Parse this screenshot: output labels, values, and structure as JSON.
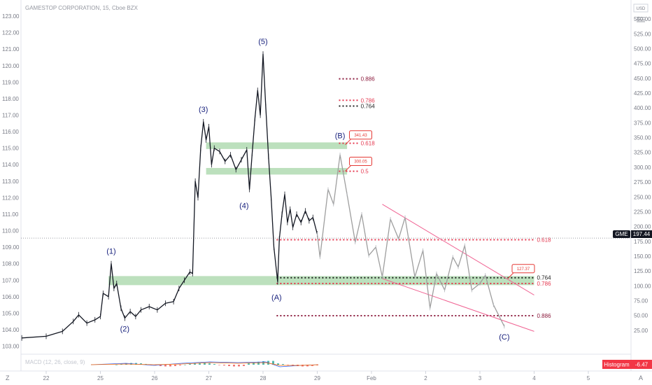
{
  "chart_data": {
    "type": "line",
    "title": "GAMESTOP CORPORATION, 15, Cboe BZX",
    "currency_label": "USD",
    "symbol": "GME",
    "last_price": "197.44",
    "last_price_left_axis": 109.55,
    "left_axis": {
      "ylim": [
        102.6,
        123.3
      ],
      "ticks": [
        {
          "label": "123.00",
          "value": 123
        },
        {
          "label": "122.00",
          "value": 122
        },
        {
          "label": "121.00",
          "value": 121
        },
        {
          "label": "120.00",
          "value": 120
        },
        {
          "label": "119.00",
          "value": 119
        },
        {
          "label": "118.00",
          "value": 118
        },
        {
          "label": "117.00",
          "value": 117
        },
        {
          "label": "116.00",
          "value": 116
        },
        {
          "label": "115.00",
          "value": 115
        },
        {
          "label": "114.00",
          "value": 114
        },
        {
          "label": "113.00",
          "value": 113
        },
        {
          "label": "112.00",
          "value": 112
        },
        {
          "label": "111.00",
          "value": 111
        },
        {
          "label": "110.00",
          "value": 110
        },
        {
          "label": "109.00",
          "value": 109
        },
        {
          "label": "108.00",
          "value": 108
        },
        {
          "label": "107.00",
          "value": 107
        },
        {
          "label": "106.00",
          "value": 106
        },
        {
          "label": "105.00",
          "value": 105
        },
        {
          "label": "104.00",
          "value": 104
        },
        {
          "label": "103.00",
          "value": 103
        }
      ]
    },
    "right_axis": {
      "ylim": [
        0,
        575
      ],
      "ticks": [
        "550.00",
        "525.00",
        "500.00",
        "475.00",
        "450.00",
        "425.00",
        "400.00",
        "375.00",
        "350.00",
        "325.00",
        "300.00",
        "275.00",
        "250.00",
        "225.00",
        "200.00",
        "175.00",
        "150.00",
        "125.00",
        "100.00",
        "75.00",
        "50.00",
        "25.00"
      ],
      "values": [
        550,
        525,
        500,
        475,
        450,
        425,
        400,
        375,
        350,
        325,
        300,
        275,
        250,
        225,
        200,
        175,
        150,
        125,
        100,
        75,
        50,
        25
      ]
    },
    "x_axis": {
      "labels": [
        "22",
        "25",
        "26",
        "27",
        "28",
        "29",
        "Feb",
        "2",
        "3",
        "4",
        "5"
      ],
      "positions": [
        0,
        1,
        2,
        3,
        4,
        5,
        6,
        7,
        8,
        9,
        10
      ]
    },
    "price_series": [
      {
        "x": -0.45,
        "y": 103.5
      },
      {
        "x": 0.0,
        "y": 103.6
      },
      {
        "x": 0.3,
        "y": 103.9
      },
      {
        "x": 0.5,
        "y": 104.5
      },
      {
        "x": 0.6,
        "y": 104.9
      },
      {
        "x": 0.75,
        "y": 104.4
      },
      {
        "x": 0.9,
        "y": 104.6
      },
      {
        "x": 1.0,
        "y": 104.8
      },
      {
        "x": 1.05,
        "y": 106.2
      },
      {
        "x": 1.15,
        "y": 106.0
      },
      {
        "x": 1.2,
        "y": 108.0
      },
      {
        "x": 1.25,
        "y": 106.5
      },
      {
        "x": 1.3,
        "y": 106.8
      },
      {
        "x": 1.38,
        "y": 105.3
      },
      {
        "x": 1.45,
        "y": 104.7
      },
      {
        "x": 1.55,
        "y": 105.1
      },
      {
        "x": 1.65,
        "y": 104.8
      },
      {
        "x": 1.75,
        "y": 105.2
      },
      {
        "x": 1.9,
        "y": 105.4
      },
      {
        "x": 2.05,
        "y": 105.2
      },
      {
        "x": 2.2,
        "y": 105.6
      },
      {
        "x": 2.35,
        "y": 105.7
      },
      {
        "x": 2.45,
        "y": 106.5
      },
      {
        "x": 2.55,
        "y": 107.0
      },
      {
        "x": 2.65,
        "y": 107.5
      },
      {
        "x": 2.7,
        "y": 107.4
      },
      {
        "x": 2.75,
        "y": 113.0
      },
      {
        "x": 2.8,
        "y": 112.0
      },
      {
        "x": 2.85,
        "y": 115.0
      },
      {
        "x": 2.9,
        "y": 116.6
      },
      {
        "x": 2.95,
        "y": 115.5
      },
      {
        "x": 3.0,
        "y": 116.3
      },
      {
        "x": 3.05,
        "y": 114.0
      },
      {
        "x": 3.1,
        "y": 115.0
      },
      {
        "x": 3.2,
        "y": 114.8
      },
      {
        "x": 3.3,
        "y": 114.2
      },
      {
        "x": 3.4,
        "y": 114.6
      },
      {
        "x": 3.5,
        "y": 113.7
      },
      {
        "x": 3.6,
        "y": 114.3
      },
      {
        "x": 3.7,
        "y": 114.9
      },
      {
        "x": 3.75,
        "y": 112.5
      },
      {
        "x": 3.8,
        "y": 114.7
      },
      {
        "x": 3.85,
        "y": 116.8
      },
      {
        "x": 3.9,
        "y": 118.5
      },
      {
        "x": 3.95,
        "y": 117.0
      },
      {
        "x": 4.0,
        "y": 120.7
      },
      {
        "x": 4.05,
        "y": 117.5
      },
      {
        "x": 4.1,
        "y": 114.5
      },
      {
        "x": 4.15,
        "y": 112.0
      },
      {
        "x": 4.2,
        "y": 109.0
      },
      {
        "x": 4.27,
        "y": 106.9
      },
      {
        "x": 4.3,
        "y": 109.5
      },
      {
        "x": 4.35,
        "y": 111.0
      },
      {
        "x": 4.4,
        "y": 112.2
      },
      {
        "x": 4.45,
        "y": 110.5
      },
      {
        "x": 4.5,
        "y": 111.3
      },
      {
        "x": 4.55,
        "y": 110.2
      },
      {
        "x": 4.62,
        "y": 111.0
      },
      {
        "x": 4.7,
        "y": 110.5
      },
      {
        "x": 4.78,
        "y": 111.2
      },
      {
        "x": 4.85,
        "y": 110.6
      },
      {
        "x": 4.92,
        "y": 110.8
      },
      {
        "x": 5.0,
        "y": 109.8
      }
    ],
    "projection_series": [
      {
        "x": 5.0,
        "y": 109.8
      },
      {
        "x": 5.05,
        "y": 108.4
      },
      {
        "x": 5.2,
        "y": 112.5
      },
      {
        "x": 5.3,
        "y": 111.6
      },
      {
        "x": 5.42,
        "y": 114.6
      },
      {
        "x": 5.55,
        "y": 112.2
      },
      {
        "x": 5.7,
        "y": 109.3
      },
      {
        "x": 5.82,
        "y": 111.0
      },
      {
        "x": 5.95,
        "y": 108.5
      },
      {
        "x": 6.08,
        "y": 109.0
      },
      {
        "x": 6.2,
        "y": 107.2
      },
      {
        "x": 6.35,
        "y": 110.7
      },
      {
        "x": 6.5,
        "y": 109.5
      },
      {
        "x": 6.62,
        "y": 110.8
      },
      {
        "x": 6.8,
        "y": 107.2
      },
      {
        "x": 6.95,
        "y": 108.8
      },
      {
        "x": 7.08,
        "y": 105.3
      },
      {
        "x": 7.2,
        "y": 107.4
      },
      {
        "x": 7.35,
        "y": 106.4
      },
      {
        "x": 7.5,
        "y": 108.4
      },
      {
        "x": 7.6,
        "y": 107.8
      },
      {
        "x": 7.72,
        "y": 109.1
      },
      {
        "x": 7.85,
        "y": 106.4
      },
      {
        "x": 8.0,
        "y": 106.8
      },
      {
        "x": 8.1,
        "y": 107.3
      },
      {
        "x": 8.25,
        "y": 105.5
      },
      {
        "x": 8.45,
        "y": 104.2
      }
    ],
    "channel_lines": [
      {
        "x1": 6.2,
        "y1": 111.6,
        "x2": 9.0,
        "y2": 106.1
      },
      {
        "x1": 6.2,
        "y1": 107.1,
        "x2": 9.0,
        "y2": 103.9
      }
    ],
    "support_zones": [
      {
        "x1": 1.15,
        "x2": 9.0,
        "y_high": 107.25,
        "y_low": 106.7
      },
      {
        "x1": 2.95,
        "x2": 5.55,
        "y_high": 115.35,
        "y_low": 114.95
      },
      {
        "x1": 2.95,
        "x2": 5.55,
        "y_high": 113.8,
        "y_low": 113.4
      }
    ],
    "fib_levels": [
      {
        "label": "0.886",
        "y": 119.2,
        "x1": 5.4,
        "x2": 5.75,
        "color": "#8b1a3c"
      },
      {
        "label": "0.786",
        "y": 117.9,
        "x1": 5.4,
        "x2": 5.75,
        "color": "#e53950"
      },
      {
        "label": "0.764",
        "y": 117.55,
        "x1": 5.4,
        "x2": 5.75,
        "color": "#1f1f1f"
      },
      {
        "label": "0.618",
        "y": 115.3,
        "x1": 5.4,
        "x2": 5.75,
        "color": "#e53950"
      },
      {
        "label": "0.5",
        "y": 113.6,
        "x1": 5.4,
        "x2": 5.75,
        "color": "#e53950"
      },
      {
        "label": "0.618",
        "y": 109.45,
        "x1": 4.25,
        "x2": 9.0,
        "color": "#e53950"
      },
      {
        "label": "0.764",
        "y": 107.15,
        "x1": 4.25,
        "x2": 9.0,
        "color": "#1f1f1f"
      },
      {
        "label": "0.786",
        "y": 106.8,
        "x1": 4.25,
        "x2": 9.0,
        "color": "#e53950"
      },
      {
        "label": "0.886",
        "y": 104.85,
        "x1": 4.25,
        "x2": 9.0,
        "color": "#8b1a3c"
      }
    ],
    "wave_labels": [
      {
        "text": "(1)",
        "x": 1.2,
        "y": 108.6
      },
      {
        "text": "(2)",
        "x": 1.45,
        "y": 103.9
      },
      {
        "text": "(3)",
        "x": 2.9,
        "y": 117.2
      },
      {
        "text": "(4)",
        "x": 3.65,
        "y": 111.35
      },
      {
        "text": "(5)",
        "x": 4.0,
        "y": 121.3
      },
      {
        "text": "(A)",
        "x": 4.25,
        "y": 105.8
      },
      {
        "text": "(B)",
        "x": 5.42,
        "y": 115.6
      },
      {
        "text": "(C)",
        "x": 8.45,
        "y": 103.4
      }
    ],
    "callouts": [
      {
        "text": "341.43",
        "x": 5.8,
        "y": 115.8
      },
      {
        "text": "300.05",
        "x": 5.8,
        "y": 114.2
      },
      {
        "text": "127.37",
        "x": 8.8,
        "y": 107.7
      }
    ],
    "indicator": {
      "title": "MACD (12, 26, close, 9)",
      "badge_label": "Histogram",
      "badge_value": "-6.47"
    },
    "grid": false
  }
}
